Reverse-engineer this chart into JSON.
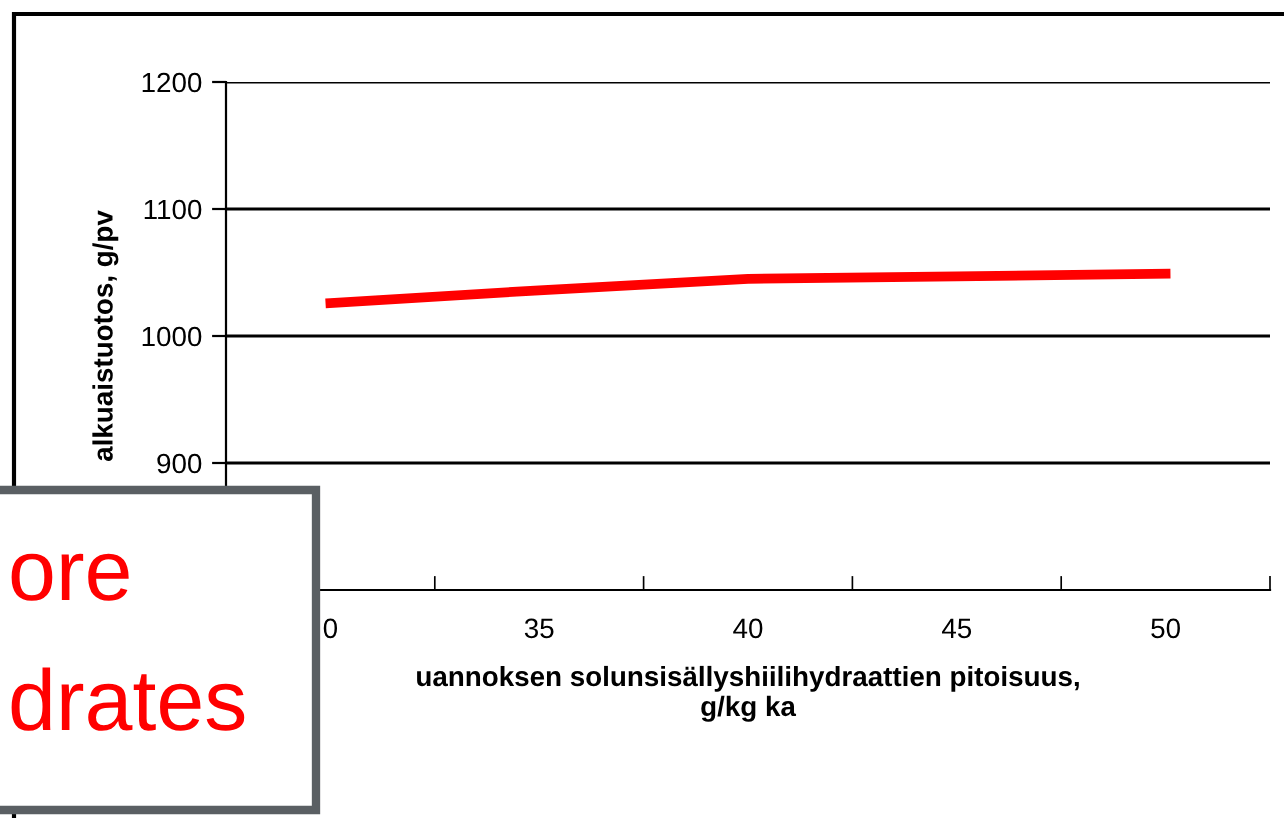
{
  "chart_data": {
    "type": "line",
    "xlabel": "uannoksen solunsisällyshiilihydraattien pitoisuus,\ng/kg ka",
    "ylabel": "alkuaistuotos, g/pv",
    "categories": [
      "0",
      "35",
      "40",
      "45",
      "50"
    ],
    "series": [
      {
        "color": "#ff0000",
        "values": [
          1026,
          1036,
          1045,
          1047,
          1049
        ]
      }
    ],
    "ylim": [
      800,
      1200
    ],
    "yticks": [
      900,
      1000,
      1100,
      1200
    ],
    "grid": "y",
    "marker": "none",
    "line_style": "solid",
    "annotations": [
      "ore",
      "drates"
    ]
  }
}
